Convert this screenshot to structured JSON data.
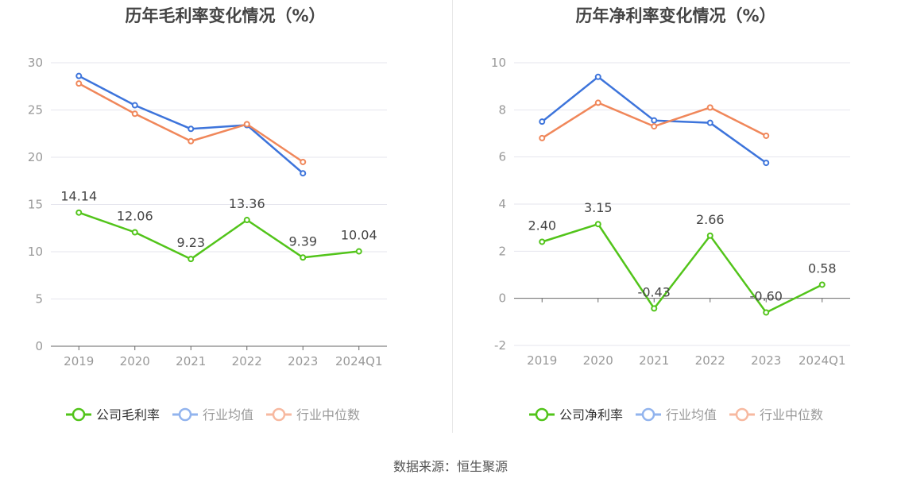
{
  "source": "数据来源：恒生聚源",
  "chart_data": [
    {
      "type": "line",
      "title": "历年毛利率变化情况（%）",
      "categories": [
        "2019",
        "2020",
        "2021",
        "2022",
        "2023",
        "2024Q1"
      ],
      "ylim": [
        0,
        30
      ],
      "yticks": [
        0,
        5,
        10,
        15,
        20,
        25,
        30
      ],
      "grid": true,
      "legend_position": "bottom",
      "series": [
        {
          "name": "公司毛利率",
          "color": "#52c41a",
          "labels": true,
          "values": [
            14.14,
            12.06,
            9.23,
            13.36,
            9.39,
            10.04
          ]
        },
        {
          "name": "行业均值",
          "color": "#3d74db",
          "labels": false,
          "values": [
            28.6,
            25.5,
            23.0,
            23.4,
            18.3,
            null
          ]
        },
        {
          "name": "行业中位数",
          "color": "#f0875a",
          "labels": false,
          "values": [
            27.8,
            24.6,
            21.7,
            23.5,
            19.5,
            null
          ]
        }
      ]
    },
    {
      "type": "line",
      "title": "历年净利率变化情况（%）",
      "categories": [
        "2019",
        "2020",
        "2021",
        "2022",
        "2023",
        "2024Q1"
      ],
      "ylim": [
        -2,
        10
      ],
      "yticks": [
        -2,
        0,
        2,
        4,
        6,
        8,
        10
      ],
      "grid": true,
      "legend_position": "bottom",
      "series": [
        {
          "name": "公司净利率",
          "color": "#52c41a",
          "labels": true,
          "values": [
            2.4,
            3.15,
            -0.43,
            2.66,
            -0.6,
            0.58
          ]
        },
        {
          "name": "行业均值",
          "color": "#3d74db",
          "labels": false,
          "values": [
            7.5,
            9.4,
            7.55,
            7.45,
            5.75,
            null
          ]
        },
        {
          "name": "行业中位数",
          "color": "#f0875a",
          "labels": false,
          "values": [
            6.8,
            8.3,
            7.3,
            8.1,
            6.9,
            null
          ]
        }
      ]
    }
  ]
}
